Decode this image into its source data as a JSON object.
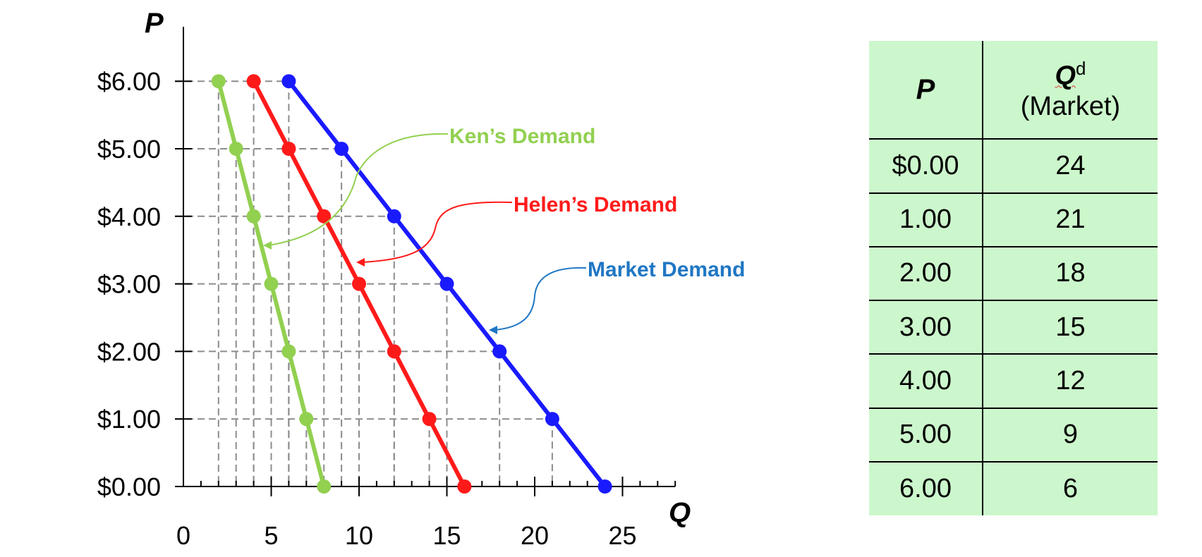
{
  "chart_data": [
    {
      "type": "line",
      "title": "",
      "xlabel": "Q",
      "ylabel": "P",
      "xlim": [
        0,
        28
      ],
      "ylim": [
        0,
        6
      ],
      "x_ticks": [
        0,
        5,
        10,
        15,
        20,
        25
      ],
      "x_tick_labels": [
        "0",
        "5",
        "10",
        "15",
        "20",
        "25"
      ],
      "y_ticks": [
        0,
        1,
        2,
        3,
        4,
        5,
        6
      ],
      "y_tick_labels": [
        "$0.00",
        "$1.00",
        "$2.00",
        "$3.00",
        "$4.00",
        "$5.00",
        "$6.00"
      ],
      "grid": "dashed guide lines at each data point",
      "series": [
        {
          "name": "Ken's Demand",
          "color": "#92d050",
          "label": "Ken’s Demand",
          "points": [
            [
              2,
              6
            ],
            [
              3,
              5
            ],
            [
              4,
              4
            ],
            [
              5,
              3
            ],
            [
              6,
              2
            ],
            [
              7,
              1
            ],
            [
              8,
              0
            ]
          ]
        },
        {
          "name": "Helen's Demand",
          "color": "#ff1a1a",
          "label": "Helen’s Demand",
          "points": [
            [
              4,
              6
            ],
            [
              6,
              5
            ],
            [
              8,
              4
            ],
            [
              10,
              3
            ],
            [
              12,
              2
            ],
            [
              14,
              1
            ],
            [
              16,
              0
            ]
          ]
        },
        {
          "name": "Market Demand",
          "color": "#1a1aff",
          "label": "Market Demand",
          "label_color": "#1f77c4",
          "points": [
            [
              6,
              6
            ],
            [
              9,
              5
            ],
            [
              12,
              4
            ],
            [
              15,
              3
            ],
            [
              18,
              2
            ],
            [
              21,
              1
            ],
            [
              24,
              0
            ]
          ]
        }
      ]
    },
    {
      "type": "table",
      "columns": [
        "P",
        "Qd (Market)"
      ],
      "rows": [
        [
          "$0.00",
          "24"
        ],
        [
          "1.00",
          "21"
        ],
        [
          "2.00",
          "18"
        ],
        [
          "3.00",
          "15"
        ],
        [
          "4.00",
          "12"
        ],
        [
          "5.00",
          "9"
        ],
        [
          "6.00",
          "6"
        ]
      ]
    }
  ],
  "table": {
    "header_p": "P",
    "header_qd_symbol": "Q",
    "header_qd_sup": "d",
    "header_qd_sub": "(Market)",
    "rows": [
      {
        "p": "$0.00",
        "q": "24"
      },
      {
        "p": "1.00",
        "q": "21"
      },
      {
        "p": "2.00",
        "q": "18"
      },
      {
        "p": "3.00",
        "q": "15"
      },
      {
        "p": "4.00",
        "q": "12"
      },
      {
        "p": "5.00",
        "q": "9"
      },
      {
        "p": "6.00",
        "q": "6"
      }
    ]
  }
}
